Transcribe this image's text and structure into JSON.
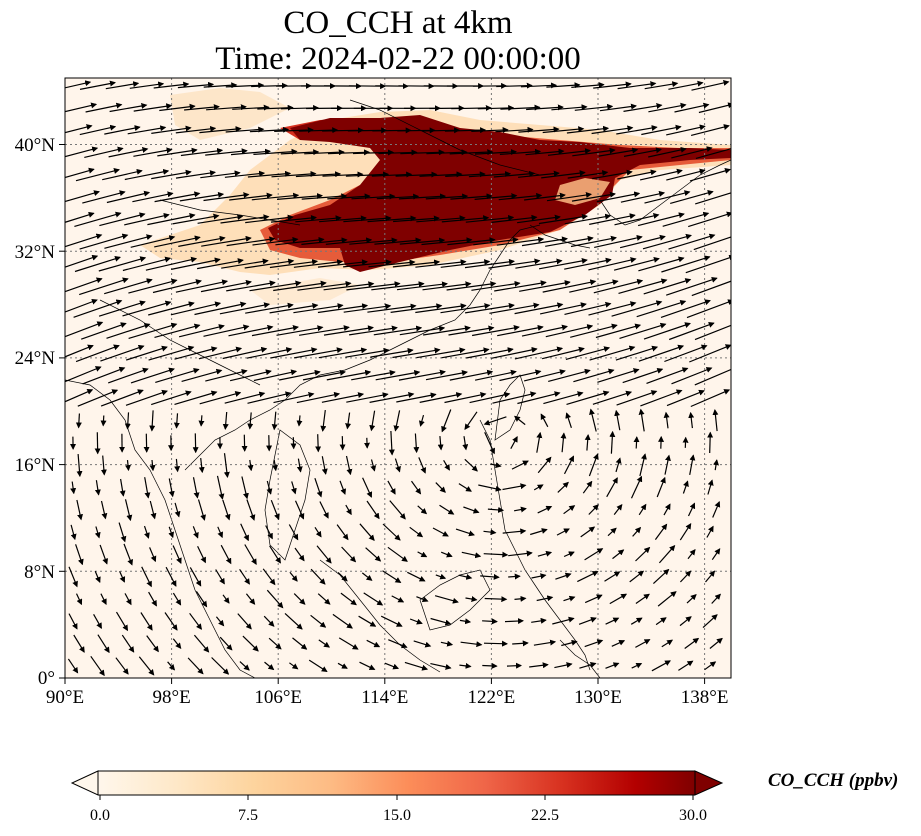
{
  "figure": {
    "title_line1": "CO_CCH at 4km",
    "title_line2": "Time: 2024-02-22 00:00:00"
  },
  "map": {
    "extent": {
      "lon_min": 90,
      "lon_max": 140,
      "lat_min": 0,
      "lat_max": 45
    },
    "lon_ticks": [
      "90°E",
      "98°E",
      "106°E",
      "114°E",
      "122°E",
      "130°E",
      "138°E"
    ],
    "lon_tick_values": [
      90,
      98,
      106,
      114,
      122,
      130,
      138
    ],
    "lat_ticks": [
      "0°",
      "8°N",
      "16°N",
      "24°N",
      "32°N",
      "40°N"
    ],
    "lat_tick_values": [
      0,
      8,
      16,
      24,
      32,
      40
    ],
    "gridlines": "dotted",
    "background_color": "#fff5eb",
    "vectors": "wind arrows"
  },
  "colorbar": {
    "label": "CO_CCH (ppbv)",
    "tick_labels": [
      "0.0",
      "7.5",
      "15.0",
      "22.5",
      "30.0"
    ],
    "tick_values": [
      0,
      7.5,
      15,
      22.5,
      30
    ],
    "range": [
      0,
      30
    ],
    "extend": "both",
    "colormap": "OrRd",
    "colors": [
      "#fff7ec",
      "#fee8c8",
      "#fdd49e",
      "#fdbb84",
      "#fc8d59",
      "#ef6548",
      "#d7301f",
      "#b30000",
      "#7f0000"
    ]
  }
}
